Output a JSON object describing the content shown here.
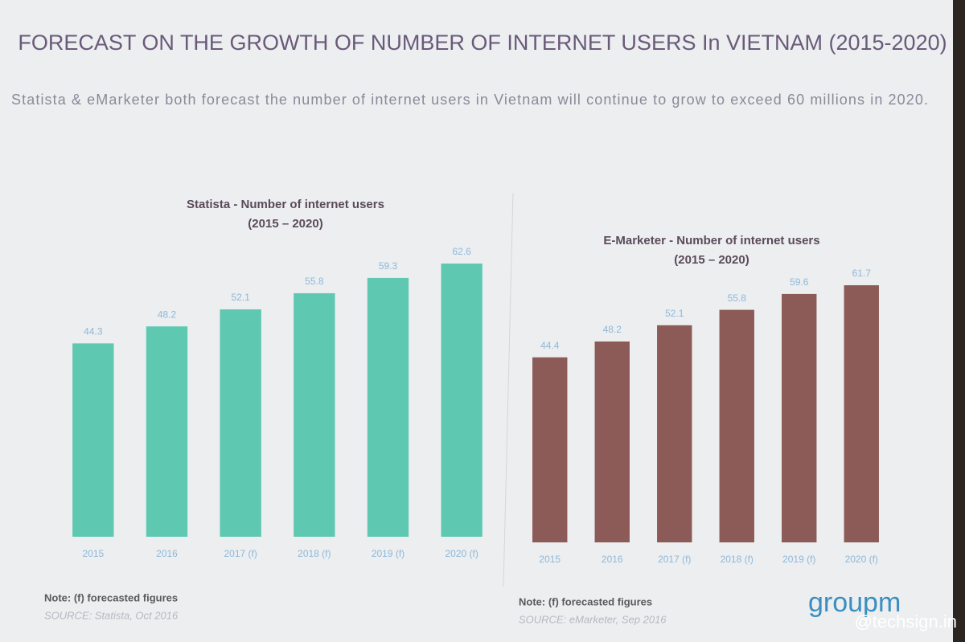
{
  "slide": {
    "title": "FORECAST ON THE GROWTH OF NUMBER OF INTERNET USERS In VIETNAM (2015-2020)",
    "subtitle": "Statista & eMarketer both forecast the number of internet users in Vietnam will continue to grow to exceed 60 millions in 2020.",
    "logo": "groupm",
    "watermark": "@techsign.in"
  },
  "chart_data": [
    {
      "type": "bar",
      "title": "Statista - Number of internet users",
      "subtitle": "(2015 – 2020)",
      "categories": [
        "2015",
        "2016",
        "2017 (f)",
        "2018 (f)",
        "2019 (f)",
        "2020 (f)"
      ],
      "values": [
        44.3,
        48.2,
        52.1,
        55.8,
        59.3,
        62.6
      ],
      "color": "#5ec8b1",
      "note": "Note: (f) forecasted figures",
      "source": "SOURCE: Statista, Oct 2016"
    },
    {
      "type": "bar",
      "title": "E-Marketer - Number of internet users",
      "subtitle": "(2015 – 2020)",
      "categories": [
        "2015",
        "2016",
        "2017 (f)",
        "2018 (f)",
        "2019 (f)",
        "2020 (f)"
      ],
      "values": [
        44.4,
        48.2,
        52.1,
        55.8,
        59.6,
        61.7
      ],
      "color": "#8c5b57",
      "note": "Note: (f) forecasted figures",
      "source": "SOURCE: eMarketer, Sep 2016"
    }
  ]
}
